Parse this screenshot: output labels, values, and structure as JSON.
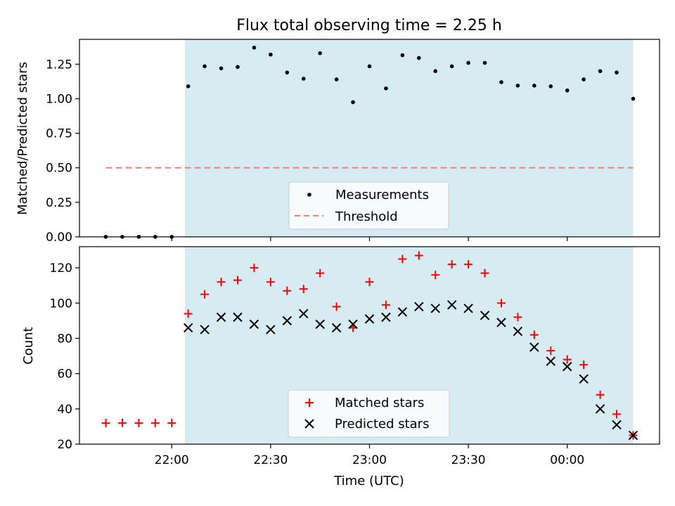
{
  "chart_data": [
    {
      "type": "scatter",
      "title": "Flux total observing time = 2.25 h",
      "xlabel": "",
      "ylabel": "Matched/Predicted stars",
      "ylim": [
        0.0,
        1.43
      ],
      "yticks": [
        "0.00",
        "0.25",
        "0.50",
        "0.75",
        "1.00",
        "1.25"
      ],
      "yticks_values": [
        0.0,
        0.25,
        0.5,
        0.75,
        1.0,
        1.25
      ],
      "x": [
        "21:40",
        "21:45",
        "21:50",
        "21:55",
        "22:00",
        "22:05",
        "22:10",
        "22:15",
        "22:20",
        "22:25",
        "22:30",
        "22:35",
        "22:40",
        "22:45",
        "22:50",
        "22:55",
        "23:00",
        "23:05",
        "23:10",
        "23:15",
        "23:20",
        "23:25",
        "23:30",
        "23:35",
        "23:40",
        "23:45",
        "23:50",
        "23:55",
        "00:00",
        "00:05",
        "00:10",
        "00:15",
        "00:20"
      ],
      "series": [
        {
          "name": "Measurements",
          "color": "#000000",
          "values": [
            0,
            0,
            0,
            0,
            0,
            1.09,
            1.235,
            1.22,
            1.23,
            1.37,
            1.32,
            1.19,
            1.145,
            1.33,
            1.14,
            0.975,
            1.235,
            1.075,
            1.315,
            1.295,
            1.2,
            1.235,
            1.26,
            1.26,
            1.12,
            1.095,
            1.095,
            1.09,
            1.06,
            1.14,
            1.2,
            1.19,
            1.0
          ]
        },
        {
          "name": "Threshold",
          "color": "#f08080",
          "x_range": [
            "21:40",
            "00:20"
          ],
          "value": 0.5
        }
      ],
      "shaded_region": {
        "x": [
          "22:04",
          "00:20"
        ],
        "color": "#add8e6"
      },
      "grid": false,
      "legend": "bottom-center"
    },
    {
      "type": "scatter",
      "title": "",
      "xlabel": "Time (UTC)",
      "ylabel": "Count",
      "ylim": [
        20,
        132
      ],
      "yticks": [
        "20",
        "40",
        "60",
        "80",
        "100",
        "120"
      ],
      "yticks_values": [
        20,
        40,
        60,
        80,
        100,
        120
      ],
      "xticks": [
        "22:00",
        "22:30",
        "23:00",
        "23:30",
        "00:00"
      ],
      "x": [
        "21:40",
        "21:45",
        "21:50",
        "21:55",
        "22:00",
        "22:05",
        "22:10",
        "22:15",
        "22:20",
        "22:25",
        "22:30",
        "22:35",
        "22:40",
        "22:45",
        "22:50",
        "22:55",
        "23:00",
        "23:05",
        "23:10",
        "23:15",
        "23:20",
        "23:25",
        "23:30",
        "23:35",
        "23:40",
        "23:45",
        "23:50",
        "23:55",
        "00:00",
        "00:05",
        "00:10",
        "00:15",
        "00:20"
      ],
      "series": [
        {
          "name": "Matched stars",
          "color": "#ff0000",
          "marker": "+",
          "values": [
            32,
            32,
            32,
            32,
            32,
            94,
            105,
            112,
            113,
            120,
            112,
            107,
            108,
            117,
            98,
            86,
            112,
            99,
            125,
            127,
            116,
            122,
            122,
            117,
            100,
            92,
            82,
            73,
            68,
            65,
            48,
            37,
            25
          ]
        },
        {
          "name": "Predicted stars",
          "color": "#000000",
          "marker": "x",
          "values": [
            null,
            null,
            null,
            null,
            null,
            86,
            85,
            92,
            92,
            88,
            85,
            90,
            94,
            88,
            86,
            88,
            91,
            92,
            95,
            98,
            97,
            99,
            97,
            93,
            89,
            84,
            75,
            67,
            64,
            57,
            40,
            31,
            25
          ]
        }
      ],
      "shaded_region": {
        "x": [
          "22:04",
          "00:20"
        ],
        "color": "#add8e6"
      },
      "grid": false,
      "legend": "bottom-center"
    }
  ]
}
